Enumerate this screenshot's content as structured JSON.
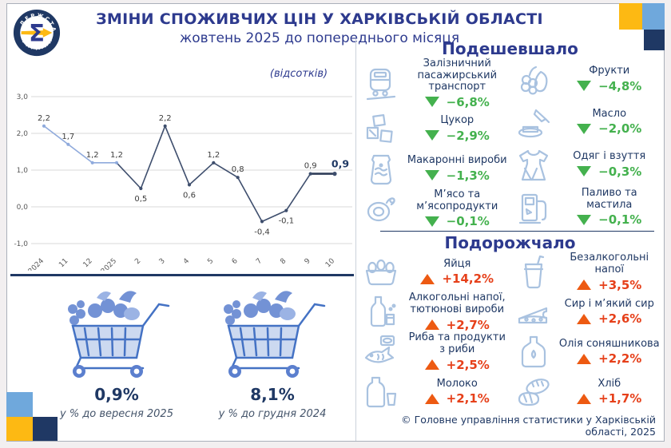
{
  "header": {
    "title": "ЗМІНИ СПОЖИВЧИХ ЦІН У ХАРКІВСЬКІЙ ОБЛАСТІ",
    "subtitle": "жовтень 2025 до попереднього місяця",
    "logo": {
      "symbol": "Σ",
      "ring_top": "ДЕРЖСТАТ",
      "ring_bottom": "УКРАЇНИ"
    }
  },
  "chart_data": {
    "type": "line",
    "title": "",
    "unit_label": "(відсотків)",
    "x": [
      "10_2024",
      "11",
      "12",
      "1_2025",
      "2",
      "3",
      "4",
      "5",
      "6",
      "7",
      "8",
      "9",
      "10"
    ],
    "values": [
      2.2,
      1.7,
      1.2,
      1.2,
      0.5,
      2.2,
      0.6,
      1.2,
      0.8,
      -0.4,
      -0.1,
      0.9,
      0.9
    ],
    "point_labels": [
      "2,2",
      "1,7",
      "1,2",
      "1,2",
      "0,5",
      "2,2",
      "0,6",
      "1,2",
      "0,8",
      "-0,4",
      "-0,1",
      "0,9",
      "0,9"
    ],
    "ylim": [
      -1.0,
      3.0
    ],
    "ytick_values": [
      3,
      2,
      1,
      0,
      -1
    ],
    "ytick_labels": [
      "3,0",
      "2,0",
      "1,0",
      "0,0",
      "-1,0"
    ],
    "grid": true,
    "legend_position": "none",
    "style_hints": {
      "light_segment_until_index": 3,
      "line_light": "#8faadc",
      "line_dark": "#3e4e6d",
      "last_segment_color": "#2f3d58"
    }
  },
  "cheaper": {
    "heading": "Подешевшало",
    "items": [
      {
        "icon": "train",
        "label": "Залізничний пасажирський транспорт",
        "value": "−6,8%"
      },
      {
        "icon": "sugar",
        "label": "Цукор",
        "value": "−2,9%"
      },
      {
        "icon": "pasta",
        "label": "Макаронні вироби",
        "value": "−1,3%"
      },
      {
        "icon": "meat",
        "label": "М’ясо та м’ясопродукти",
        "value": "−0,1%"
      },
      {
        "icon": "fruits",
        "label": "Фрукти",
        "value": "−4,8%"
      },
      {
        "icon": "butter",
        "label": "Масло",
        "value": "−2,0%"
      },
      {
        "icon": "clothes",
        "label": "Одяг і взуття",
        "value": "−0,3%"
      },
      {
        "icon": "fuel",
        "label": "Паливо та мастила",
        "value": "−0,1%"
      }
    ]
  },
  "pricier": {
    "heading": "Подорожчало",
    "items": [
      {
        "icon": "eggs",
        "label": "Яйця",
        "value": "+14,2%"
      },
      {
        "icon": "alcohol",
        "label": "Алкогольні напої, тютюнові вироби",
        "value": "+2,7%"
      },
      {
        "icon": "fish",
        "label": "Риба та продукти з риби",
        "value": "+2,5%"
      },
      {
        "icon": "milk",
        "label": "Молоко",
        "value": "+2,1%"
      },
      {
        "icon": "soft-drink",
        "label": "Безалкогольні напої",
        "value": "+3,5%"
      },
      {
        "icon": "cheese",
        "label": "Сир і м’який сир",
        "value": "+2,6%"
      },
      {
        "icon": "oil",
        "label": "Олія соняшникова",
        "value": "+2,2%"
      },
      {
        "icon": "bread",
        "label": "Хліб",
        "value": "+1,7%"
      }
    ]
  },
  "summary": {
    "items": [
      {
        "value": "0,9%",
        "caption": "у % до вересня 2025"
      },
      {
        "value": "8,1%",
        "caption": "у % до грудня 2024"
      }
    ]
  },
  "footer": {
    "copyright": "© Головне управління статистики у Харківській області, 2025"
  },
  "colors": {
    "navy_title": "#2d3a8e",
    "navy_text": "#1f3864",
    "down_green": "#44b14e",
    "up_orange": "#ed5a12",
    "up_text_red": "#e6401a",
    "accent_light_blue": "#6fa8dc",
    "accent_yellow": "#fdb913",
    "accent_dark_blue": "#1f3864"
  }
}
